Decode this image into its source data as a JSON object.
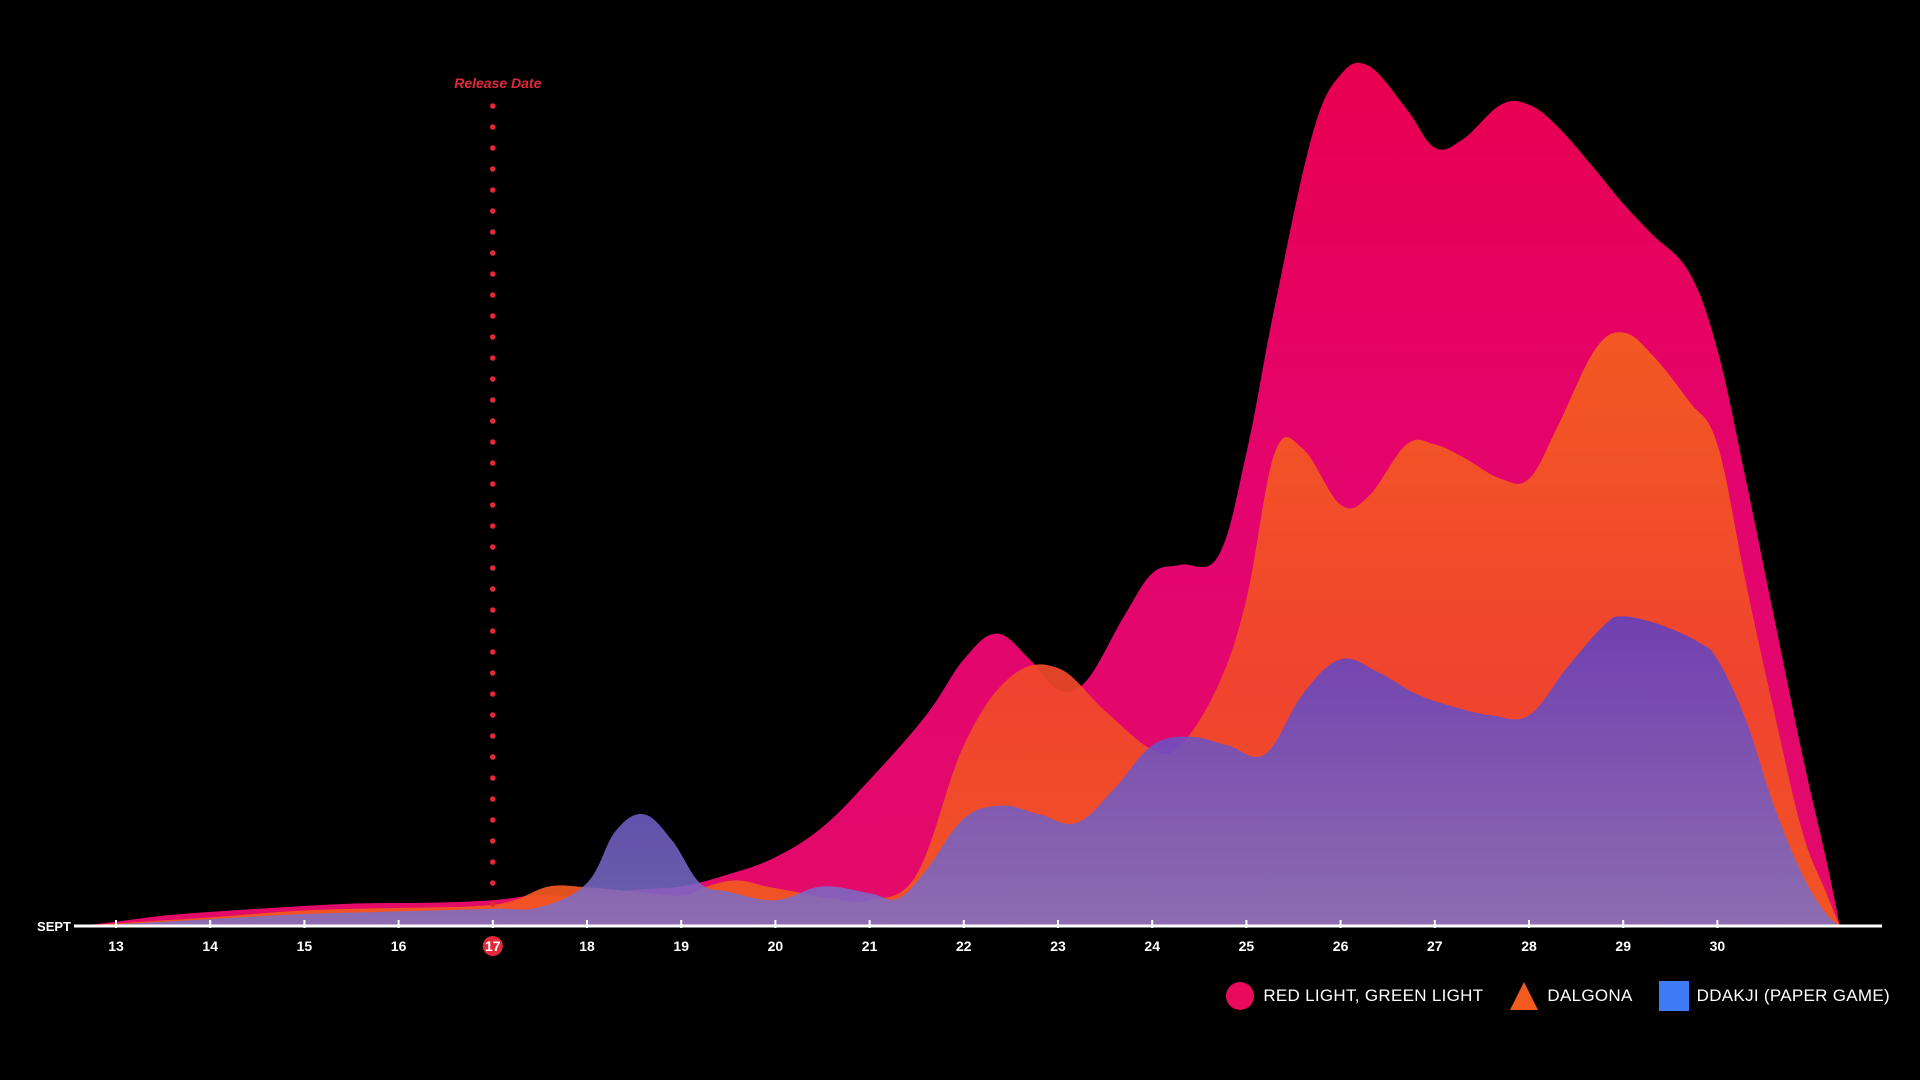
{
  "chart_data": {
    "type": "area",
    "xlabel": "SEPT",
    "categories": [
      "13",
      "14",
      "15",
      "16",
      "17",
      "18",
      "19",
      "20",
      "21",
      "22",
      "23",
      "24",
      "25",
      "26",
      "27",
      "28",
      "29",
      "30"
    ],
    "ylim": [
      0,
      100
    ],
    "grid": false,
    "legend_position": "bottom-right",
    "annotation": {
      "label": "Release Date",
      "at": 17,
      "color": "#e02a3a"
    },
    "x_domain": [
      12.6,
      31.3
    ],
    "series": [
      {
        "name": "RED LIGHT, GREEN LIGHT",
        "color": "#ea0a5c",
        "marker": "circle",
        "points": [
          [
            12.6,
            0
          ],
          [
            13,
            0.5
          ],
          [
            13.6,
            1.3
          ],
          [
            14.5,
            2.0
          ],
          [
            15.5,
            2.6
          ],
          [
            16.3,
            2.7
          ],
          [
            17,
            3.0
          ],
          [
            17.5,
            3.6
          ],
          [
            18,
            3.3
          ],
          [
            18.5,
            4.2
          ],
          [
            19,
            4.6
          ],
          [
            19.5,
            6.0
          ],
          [
            20,
            8.0
          ],
          [
            20.5,
            11.5
          ],
          [
            21,
            17.0
          ],
          [
            21.6,
            24.5
          ],
          [
            22,
            31.0
          ],
          [
            22.35,
            34.0
          ],
          [
            22.7,
            31.0
          ],
          [
            23,
            27.5
          ],
          [
            23.3,
            28.5
          ],
          [
            23.7,
            36.0
          ],
          [
            24,
            41.0
          ],
          [
            24.3,
            42.0
          ],
          [
            24.7,
            43.0
          ],
          [
            25,
            55.0
          ],
          [
            25.3,
            72.0
          ],
          [
            25.7,
            92.0
          ],
          [
            26,
            99.0
          ],
          [
            26.3,
            100.0
          ],
          [
            26.7,
            95.0
          ],
          [
            27,
            90.5
          ],
          [
            27.3,
            91.5
          ],
          [
            27.7,
            95.5
          ],
          [
            28,
            95.5
          ],
          [
            28.3,
            93.0
          ],
          [
            28.7,
            88.0
          ],
          [
            29,
            84.0
          ],
          [
            29.3,
            80.5
          ],
          [
            29.7,
            76.0
          ],
          [
            30,
            67.0
          ],
          [
            30.3,
            52.0
          ],
          [
            30.6,
            36.0
          ],
          [
            30.9,
            20.0
          ],
          [
            31.15,
            8.0
          ],
          [
            31.3,
            0
          ]
        ]
      },
      {
        "name": "DALGONA",
        "color": "#f25a1e",
        "marker": "triangle",
        "points": [
          [
            12.6,
            0
          ],
          [
            13,
            0.3
          ],
          [
            14,
            1.0
          ],
          [
            15,
            1.8
          ],
          [
            16,
            2.1
          ],
          [
            16.8,
            2.3
          ],
          [
            17.2,
            2.9
          ],
          [
            17.6,
            4.6
          ],
          [
            18,
            4.5
          ],
          [
            18.5,
            4.0
          ],
          [
            19,
            3.5
          ],
          [
            19.3,
            4.7
          ],
          [
            19.6,
            5.3
          ],
          [
            19.9,
            4.6
          ],
          [
            20.2,
            4.0
          ],
          [
            20.6,
            3.2
          ],
          [
            21,
            3.0
          ],
          [
            21.5,
            6.0
          ],
          [
            22,
            21.0
          ],
          [
            22.5,
            29.0
          ],
          [
            23,
            30.0
          ],
          [
            23.5,
            25.0
          ],
          [
            24,
            20.5
          ],
          [
            24.3,
            21.0
          ],
          [
            24.7,
            28.0
          ],
          [
            25,
            38.0
          ],
          [
            25.3,
            55.0
          ],
          [
            25.6,
            55.5
          ],
          [
            26,
            49.0
          ],
          [
            26.3,
            50.0
          ],
          [
            26.7,
            56.0
          ],
          [
            27,
            56.0
          ],
          [
            27.3,
            54.5
          ],
          [
            27.7,
            52.0
          ],
          [
            28,
            52.0
          ],
          [
            28.3,
            58.0
          ],
          [
            28.7,
            67.0
          ],
          [
            29,
            69.0
          ],
          [
            29.3,
            66.5
          ],
          [
            29.7,
            61.0
          ],
          [
            30,
            56.0
          ],
          [
            30.3,
            40.0
          ],
          [
            30.6,
            25.0
          ],
          [
            30.9,
            11.0
          ],
          [
            31.15,
            4.0
          ],
          [
            31.3,
            0
          ]
        ]
      },
      {
        "name": "DDAKJI (PAPER GAME)",
        "color": "#3d7bf7",
        "marker": "square",
        "points": [
          [
            12.6,
            0
          ],
          [
            13,
            0.2
          ],
          [
            14,
            0.8
          ],
          [
            15,
            1.4
          ],
          [
            16,
            1.7
          ],
          [
            17,
            2.0
          ],
          [
            17.5,
            2.2
          ],
          [
            18,
            5.0
          ],
          [
            18.3,
            11.0
          ],
          [
            18.6,
            13.0
          ],
          [
            18.9,
            10.0
          ],
          [
            19.2,
            5.0
          ],
          [
            19.5,
            4.0
          ],
          [
            20,
            3.0
          ],
          [
            20.5,
            4.6
          ],
          [
            21,
            3.8
          ],
          [
            21.3,
            3.2
          ],
          [
            21.6,
            6.5
          ],
          [
            22,
            12.5
          ],
          [
            22.4,
            14.0
          ],
          [
            22.8,
            13.0
          ],
          [
            23.2,
            12.0
          ],
          [
            23.6,
            16.0
          ],
          [
            24,
            21.0
          ],
          [
            24.4,
            22.0
          ],
          [
            24.8,
            21.0
          ],
          [
            25.2,
            20.0
          ],
          [
            25.6,
            27.0
          ],
          [
            26,
            31.0
          ],
          [
            26.4,
            29.5
          ],
          [
            26.8,
            27.0
          ],
          [
            27.2,
            25.5
          ],
          [
            27.6,
            24.5
          ],
          [
            28,
            24.5
          ],
          [
            28.4,
            30.0
          ],
          [
            28.8,
            35.0
          ],
          [
            29,
            36.0
          ],
          [
            29.4,
            35.0
          ],
          [
            29.8,
            33.0
          ],
          [
            30,
            31.0
          ],
          [
            30.3,
            24.0
          ],
          [
            30.6,
            14.0
          ],
          [
            30.9,
            6.0
          ],
          [
            31.15,
            1.5
          ],
          [
            31.3,
            0
          ]
        ]
      }
    ]
  }
}
